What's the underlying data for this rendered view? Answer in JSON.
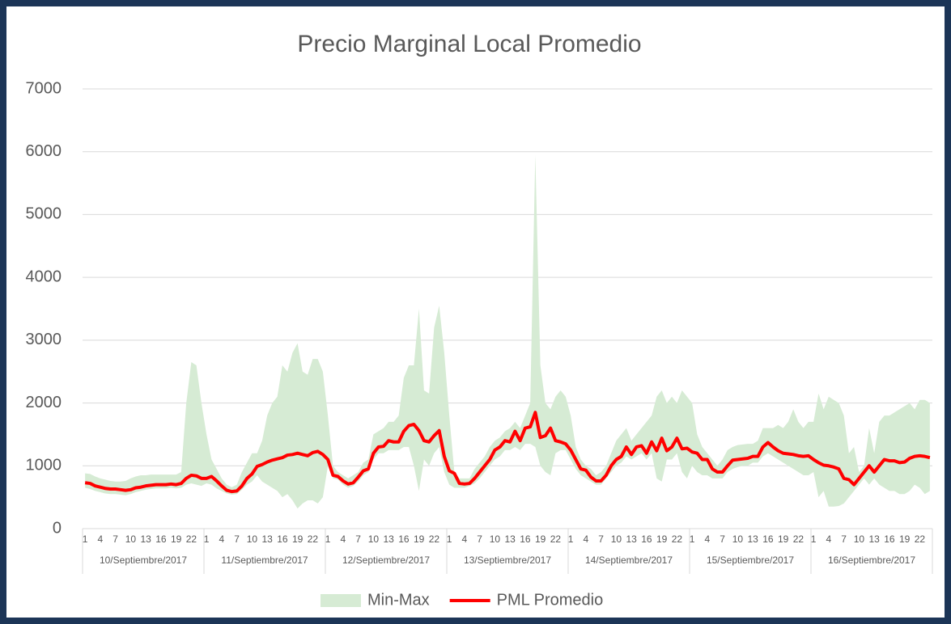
{
  "chart_data": {
    "type": "line",
    "title": "Precio Marginal Local Promedio",
    "categories": [
      "1",
      null,
      null,
      "4",
      null,
      null,
      "7",
      null,
      null,
      "10",
      null,
      null,
      "13",
      null,
      null,
      "16",
      null,
      null,
      "19",
      null,
      null,
      "22",
      null,
      null,
      "1",
      null,
      null,
      "4",
      null,
      null,
      "7",
      null,
      null,
      "10",
      null,
      null,
      "13",
      null,
      null,
      "16",
      null,
      null,
      "19",
      null,
      null,
      "22",
      null,
      null,
      "1",
      null,
      null,
      "4",
      null,
      null,
      "7",
      null,
      null,
      "10",
      null,
      null,
      "13",
      null,
      null,
      "16",
      null,
      null,
      "19",
      null,
      null,
      "22",
      null,
      null,
      "1",
      null,
      null,
      "4",
      null,
      null,
      "7",
      null,
      null,
      "10",
      null,
      null,
      "13",
      null,
      null,
      "16",
      null,
      null,
      "19",
      null,
      null,
      "22",
      null,
      null,
      "1",
      null,
      null,
      "4",
      null,
      null,
      "7",
      null,
      null,
      "10",
      null,
      null,
      "13",
      null,
      null,
      "16",
      null,
      null,
      "19",
      null,
      null,
      "22",
      null,
      null,
      "1",
      null,
      null,
      "4",
      null,
      null,
      "7",
      null,
      null,
      "10",
      null,
      null,
      "13",
      null,
      null,
      "16",
      null,
      null,
      "19",
      null,
      null,
      "22",
      null,
      null,
      "1",
      null,
      null,
      "4",
      null,
      null,
      "7",
      null,
      null,
      "10",
      null,
      null,
      "13",
      null,
      null,
      "16",
      null,
      null,
      "19",
      null,
      null,
      "22",
      null,
      null
    ],
    "groups": [
      "10/Septiembre/2017",
      "11/Septiembre/2017",
      "12/Septiembre/2017",
      "13/Septiembre/2017",
      "14/Septiembre/2017",
      "15/Septiembre/2017",
      "16/Septiembre/2017"
    ],
    "series": [
      {
        "name": "Min-Max",
        "type": "band",
        "color": "#d6ebd4",
        "values": [
          880,
          870,
          830,
          800,
          780,
          760,
          750,
          750,
          760,
          800,
          830,
          850,
          850,
          860,
          860,
          860,
          860,
          860,
          860,
          900,
          2000,
          2650,
          2600,
          2000,
          1500,
          1100,
          950,
          800,
          700,
          660,
          700,
          900,
          1050,
          1200,
          1200,
          1400,
          1800,
          2000,
          2100,
          2600,
          2500,
          2800,
          2950,
          2500,
          2450,
          2700,
          2700,
          2500,
          1800,
          1000,
          900,
          850,
          800,
          850,
          900,
          1050,
          1100,
          1500,
          1550,
          1600,
          1700,
          1700,
          1800,
          2400,
          2600,
          2600,
          3500,
          2200,
          2150,
          3200,
          3550,
          2800,
          1800,
          900,
          800,
          800,
          800,
          950,
          1050,
          1150,
          1300,
          1400,
          1450,
          1550,
          1600,
          1700,
          1600,
          1800,
          2000,
          5950,
          2600,
          2000,
          1900,
          2100,
          2200,
          2100,
          1800,
          1300,
          1100,
          1000,
          950,
          850,
          900,
          1000,
          1200,
          1400,
          1500,
          1600,
          1400,
          1500,
          1600,
          1700,
          1800,
          2100,
          2200,
          2000,
          2100,
          2000,
          2200,
          2100,
          2000,
          1500,
          1300,
          1200,
          1100,
          1000,
          1100,
          1250,
          1300,
          1330,
          1340,
          1350,
          1350,
          1400,
          1600,
          1600,
          1600,
          1650,
          1600,
          1700,
          1900,
          1700,
          1600,
          1700,
          1700,
          2150,
          1900,
          2100,
          2050,
          2000,
          1800,
          1200,
          1300,
          900,
          1000,
          1600,
          1200,
          1700,
          1800,
          1800,
          1850,
          1900,
          1950,
          2000,
          1900,
          2050,
          2050,
          2000
        ],
        "lower": [
          650,
          630,
          600,
          580,
          560,
          550,
          550,
          540,
          530,
          550,
          580,
          600,
          620,
          630,
          640,
          640,
          640,
          650,
          640,
          650,
          700,
          720,
          700,
          680,
          720,
          700,
          640,
          600,
          560,
          540,
          550,
          620,
          700,
          750,
          850,
          750,
          700,
          650,
          600,
          500,
          550,
          450,
          320,
          400,
          450,
          450,
          400,
          500,
          1000,
          800,
          780,
          700,
          650,
          680,
          750,
          850,
          900,
          1100,
          1200,
          1200,
          1250,
          1250,
          1250,
          1300,
          1300,
          1000,
          600,
          1100,
          1000,
          1200,
          1300,
          900,
          700,
          650,
          650,
          650,
          680,
          720,
          800,
          900,
          1000,
          1100,
          1150,
          1250,
          1250,
          1300,
          1250,
          1350,
          1350,
          1300,
          1000,
          900,
          850,
          1200,
          1250,
          1250,
          1100,
          950,
          850,
          800,
          750,
          700,
          700,
          800,
          900,
          1000,
          1050,
          1150,
          1100,
          1150,
          1200,
          1100,
          1200,
          800,
          750,
          1100,
          1100,
          1200,
          900,
          800,
          1000,
          900,
          850,
          850,
          800,
          800,
          800,
          900,
          950,
          980,
          1000,
          1000,
          1050,
          1050,
          1150,
          1200,
          1150,
          1100,
          1050,
          1000,
          950,
          900,
          850,
          850,
          900,
          500,
          600,
          350,
          350,
          360,
          400,
          500,
          600,
          700,
          800,
          700,
          800,
          700,
          650,
          600,
          600,
          550,
          550,
          600,
          700,
          650,
          550,
          600
        ]
      },
      {
        "name": "PML Promedio",
        "type": "line",
        "color": "#ff0000",
        "values": [
          730,
          720,
          680,
          660,
          640,
          630,
          630,
          620,
          610,
          620,
          650,
          660,
          680,
          690,
          700,
          700,
          700,
          710,
          700,
          720,
          800,
          850,
          840,
          800,
          800,
          830,
          760,
          680,
          610,
          590,
          600,
          680,
          800,
          870,
          990,
          1020,
          1060,
          1090,
          1110,
          1130,
          1170,
          1180,
          1200,
          1180,
          1160,
          1210,
          1230,
          1180,
          1100,
          850,
          830,
          760,
          710,
          730,
          820,
          920,
          950,
          1200,
          1300,
          1310,
          1400,
          1380,
          1380,
          1550,
          1640,
          1660,
          1560,
          1400,
          1380,
          1480,
          1560,
          1150,
          920,
          880,
          720,
          710,
          720,
          800,
          900,
          1000,
          1100,
          1250,
          1300,
          1400,
          1380,
          1550,
          1400,
          1600,
          1620,
          1850,
          1450,
          1480,
          1600,
          1400,
          1380,
          1350,
          1250,
          1100,
          950,
          930,
          820,
          760,
          760,
          850,
          1000,
          1100,
          1150,
          1300,
          1180,
          1300,
          1320,
          1200,
          1380,
          1240,
          1440,
          1240,
          1300,
          1440,
          1270,
          1280,
          1220,
          1200,
          1100,
          1100,
          950,
          900,
          900,
          1000,
          1090,
          1100,
          1110,
          1120,
          1150,
          1150,
          1300,
          1370,
          1300,
          1240,
          1200,
          1190,
          1180,
          1160,
          1150,
          1160,
          1100,
          1050,
          1010,
          1000,
          980,
          950,
          800,
          780,
          700,
          800,
          900,
          1000,
          900,
          1000,
          1100,
          1080,
          1080,
          1050,
          1060,
          1120,
          1150,
          1160,
          1150,
          1130
        ]
      }
    ],
    "ylim": [
      0,
      7000
    ],
    "yticks": [
      0,
      1000,
      2000,
      3000,
      4000,
      5000,
      6000,
      7000
    ],
    "grid": true,
    "legend": "bottom"
  }
}
